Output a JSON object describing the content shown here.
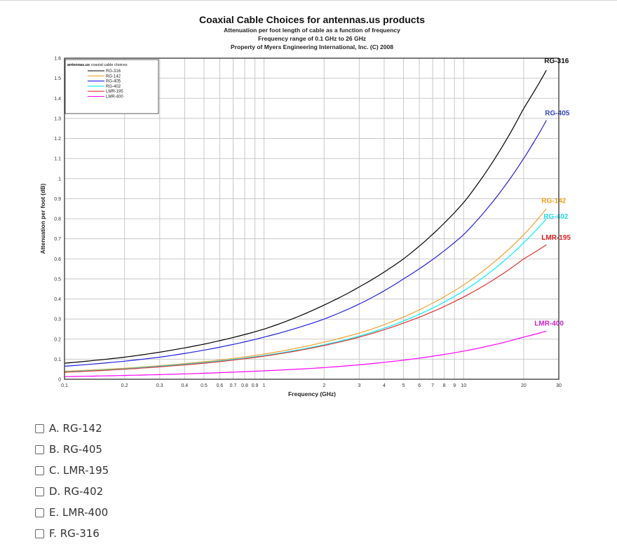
{
  "chart_data": {
    "type": "line",
    "title": "Coaxial Cable Choices for antennas.us products",
    "subtitle_lines": [
      "Attenuation per foot length of cable as a function of frequency",
      "Frequency range of 0.1 GHz to 26 GHz",
      "Property of Myers Engineering International, Inc. (C) 2008"
    ],
    "xlabel": "Frequency (GHz)",
    "ylabel": "Attenuation per foot (dB)",
    "x_scale": "log",
    "xlim": [
      0.1,
      30
    ],
    "ylim": [
      0,
      1.6
    ],
    "x_ticks": [
      0.1,
      0.2,
      0.3,
      0.4,
      0.5,
      0.6,
      0.7,
      0.8,
      0.9,
      1,
      2,
      3,
      4,
      5,
      6,
      7,
      8,
      9,
      10,
      20,
      30
    ],
    "x_tick_labels": [
      "0.1",
      "0.2",
      "0.3",
      "0.4",
      "0.5",
      "0.6",
      "0.7",
      "0.8",
      "0.9",
      "1",
      "2",
      "3",
      "4",
      "5",
      "6",
      "7",
      "8",
      "9",
      "10",
      "20",
      "30"
    ],
    "y_ticks": [
      0,
      0.1,
      0.2,
      0.3,
      0.4,
      0.5,
      0.6,
      0.7,
      0.8,
      0.9,
      1,
      1.1,
      1.2,
      1.3,
      1.4,
      1.5,
      1.6
    ],
    "y_tick_labels": [
      "0",
      "0.1",
      "0.2",
      "0.3",
      "0.4",
      "0.5",
      "0.6",
      "0.7",
      "0.8",
      "0.9",
      "1",
      "1.1",
      "1.2",
      "1.3",
      "1.4",
      "1.5",
      "1.6"
    ],
    "grid": true,
    "legend": {
      "title": "antennas.us coaxial cable choices",
      "placement": "top-left",
      "entries": [
        "RG-316",
        "RG-142",
        "RG-405",
        "RG-402",
        "LMR-195",
        "LMR-400"
      ]
    },
    "series": [
      {
        "name": "RG-316",
        "color": "#000000",
        "label_color": "#111111",
        "x": [
          0.1,
          0.2,
          0.3,
          0.5,
          1,
          2,
          3,
          5,
          10,
          20,
          26
        ],
        "y": [
          0.08,
          0.11,
          0.135,
          0.175,
          0.25,
          0.37,
          0.46,
          0.6,
          0.88,
          1.35,
          1.54
        ]
      },
      {
        "name": "RG-405",
        "color": "#2020e0",
        "label_color": "#3344cc",
        "x": [
          0.1,
          0.2,
          0.3,
          0.5,
          1,
          2,
          3,
          5,
          10,
          20,
          26
        ],
        "y": [
          0.065,
          0.09,
          0.11,
          0.145,
          0.21,
          0.3,
          0.375,
          0.5,
          0.72,
          1.1,
          1.29
        ]
      },
      {
        "name": "RG-142",
        "color": "#f0a030",
        "label_color": "#f0a020",
        "x": [
          0.1,
          0.2,
          0.3,
          0.5,
          1,
          2,
          3,
          5,
          10,
          20,
          26
        ],
        "y": [
          0.04,
          0.055,
          0.068,
          0.087,
          0.125,
          0.185,
          0.23,
          0.31,
          0.47,
          0.72,
          0.85
        ]
      },
      {
        "name": "RG-402",
        "color": "#00f0ff",
        "label_color": "#22ddee",
        "x": [
          0.1,
          0.2,
          0.3,
          0.5,
          1,
          2,
          3,
          5,
          10,
          20,
          26
        ],
        "y": [
          0.037,
          0.052,
          0.065,
          0.083,
          0.118,
          0.172,
          0.215,
          0.29,
          0.44,
          0.68,
          0.8
        ]
      },
      {
        "name": "LMR-195",
        "color": "#e03030",
        "label_color": "#dd2222",
        "x": [
          0.1,
          0.2,
          0.3,
          0.5,
          1,
          2,
          3,
          5,
          10,
          20,
          26
        ],
        "y": [
          0.035,
          0.05,
          0.062,
          0.08,
          0.115,
          0.168,
          0.21,
          0.28,
          0.41,
          0.6,
          0.67
        ]
      },
      {
        "name": "LMR-400",
        "color": "#ff00ff",
        "label_color": "#cc22cc",
        "x": [
          0.1,
          0.2,
          0.3,
          0.5,
          1,
          2,
          3,
          5,
          10,
          20,
          26
        ],
        "y": [
          0.013,
          0.019,
          0.023,
          0.03,
          0.042,
          0.058,
          0.072,
          0.095,
          0.14,
          0.21,
          0.24
        ]
      }
    ]
  },
  "choices": [
    {
      "label": "A. RG-142"
    },
    {
      "label": "B. RG-405"
    },
    {
      "label": "C. LMR-195"
    },
    {
      "label": "D. RG-402"
    },
    {
      "label": "E. LMR-400"
    },
    {
      "label": "F. RG-316"
    }
  ]
}
